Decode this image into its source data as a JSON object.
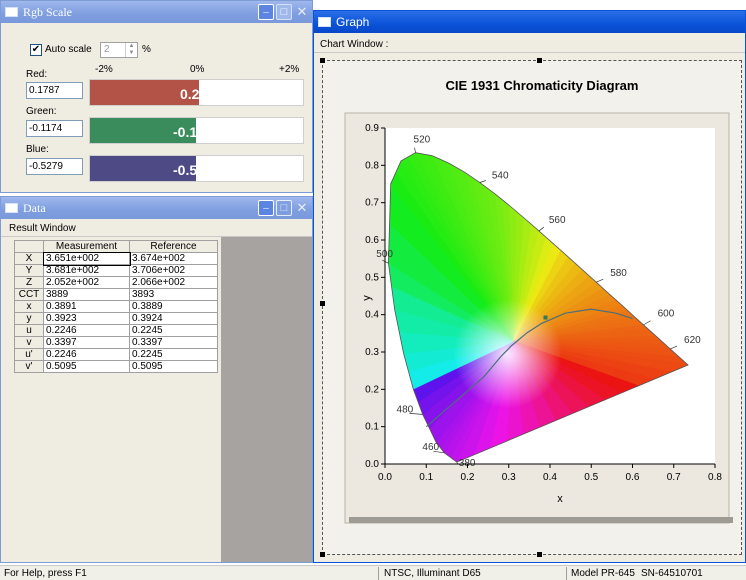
{
  "rgb_window": {
    "title": "Rgb Scale",
    "auto_scale_label": "Auto scale",
    "auto_scale_checked": true,
    "scale_value": "2",
    "scale_unit": "%",
    "axis": {
      "min": "-2%",
      "mid": "0%",
      "max": "+2%"
    },
    "channels": [
      {
        "label": "Red:",
        "value": "0.1787",
        "bar_text": "0.2%",
        "color": "#b35348",
        "percent": 0.2
      },
      {
        "label": "Green:",
        "value": "-0.1174",
        "bar_text": "-0.1%",
        "color": "#3a8c5c",
        "percent": -0.1
      },
      {
        "label": "Blue:",
        "value": "-0.5279",
        "bar_text": "-0.5%",
        "color": "#4d4a86",
        "percent": -0.5
      }
    ]
  },
  "data_window": {
    "title": "Data",
    "result_label": "Result Window",
    "columns": [
      "",
      "Measurement",
      "Reference"
    ],
    "rows": [
      [
        "X",
        "3.651e+002",
        "3.674e+002"
      ],
      [
        "Y",
        "3.681e+002",
        "3.706e+002"
      ],
      [
        "Z",
        "2.052e+002",
        "2.066e+002"
      ],
      [
        "CCT",
        "3889",
        "3893"
      ],
      [
        "x",
        "0.3891",
        "0.3889"
      ],
      [
        "y",
        "0.3923",
        "0.3924"
      ],
      [
        "u",
        "0.2246",
        "0.2245"
      ],
      [
        "v",
        "0.3397",
        "0.3397"
      ],
      [
        "u'",
        "0.2246",
        "0.2245"
      ],
      [
        "v'",
        "0.5095",
        "0.5095"
      ]
    ]
  },
  "graph_window": {
    "title": "Graph",
    "chart_window_label": "Chart Window :"
  },
  "chart_data": {
    "type": "scatter",
    "title": "CIE 1931 Chromaticity Diagram",
    "xlabel": "x",
    "ylabel": "y",
    "xlim": [
      0,
      0.8
    ],
    "ylim": [
      0,
      0.9
    ],
    "x_ticks": [
      "0.0",
      "0.1",
      "0.2",
      "0.3",
      "0.4",
      "0.5",
      "0.6",
      "0.7",
      "0.8"
    ],
    "y_ticks": [
      "0.0",
      "0.1",
      "0.2",
      "0.3",
      "0.4",
      "0.5",
      "0.6",
      "0.7",
      "0.8",
      "0.9"
    ],
    "wavelength_labels": [
      {
        "text": "380",
        "x": 0.174,
        "y": 0.005
      },
      {
        "text": "460",
        "x": 0.144,
        "y": 0.03
      },
      {
        "text": "480",
        "x": 0.091,
        "y": 0.133
      },
      {
        "text": "500",
        "x": 0.008,
        "y": 0.538
      },
      {
        "text": "520",
        "x": 0.074,
        "y": 0.834
      },
      {
        "text": "540",
        "x": 0.23,
        "y": 0.754
      },
      {
        "text": "560",
        "x": 0.373,
        "y": 0.624
      },
      {
        "text": "580",
        "x": 0.512,
        "y": 0.487
      },
      {
        "text": "600",
        "x": 0.627,
        "y": 0.373
      },
      {
        "text": "620",
        "x": 0.691,
        "y": 0.308
      }
    ],
    "spectral_locus": [
      [
        0.1741,
        0.005
      ],
      [
        0.144,
        0.0297
      ],
      [
        0.1241,
        0.0578
      ],
      [
        0.0913,
        0.1327
      ],
      [
        0.0687,
        0.2007
      ],
      [
        0.0454,
        0.295
      ],
      [
        0.0235,
        0.4127
      ],
      [
        0.0082,
        0.5384
      ],
      [
        0.0139,
        0.7502
      ],
      [
        0.0389,
        0.812
      ],
      [
        0.0743,
        0.8338
      ],
      [
        0.1142,
        0.8262
      ],
      [
        0.1547,
        0.8059
      ],
      [
        0.1929,
        0.7816
      ],
      [
        0.2296,
        0.7543
      ],
      [
        0.2658,
        0.7243
      ],
      [
        0.3016,
        0.6923
      ],
      [
        0.3373,
        0.6589
      ],
      [
        0.3731,
        0.6245
      ],
      [
        0.4087,
        0.5896
      ],
      [
        0.4441,
        0.5547
      ],
      [
        0.4788,
        0.5202
      ],
      [
        0.5125,
        0.4866
      ],
      [
        0.5448,
        0.4544
      ],
      [
        0.5752,
        0.4242
      ],
      [
        0.6029,
        0.3965
      ],
      [
        0.627,
        0.3725
      ],
      [
        0.6482,
        0.3514
      ],
      [
        0.6658,
        0.334
      ],
      [
        0.6915,
        0.3083
      ],
      [
        0.7347,
        0.2653
      ]
    ],
    "planckian_locus": [
      [
        0.1,
        0.1
      ],
      [
        0.24,
        0.234
      ],
      [
        0.281,
        0.288
      ],
      [
        0.306,
        0.316
      ],
      [
        0.345,
        0.352
      ],
      [
        0.38,
        0.377
      ],
      [
        0.437,
        0.404
      ],
      [
        0.5,
        0.415
      ],
      [
        0.56,
        0.404
      ],
      [
        0.6,
        0.39
      ]
    ],
    "measured_point": {
      "x": 0.3891,
      "y": 0.3923
    }
  },
  "statusbar": {
    "help": "For Help, press F1",
    "illuminant": "NTSC, Illuminant D65",
    "model": "Model PR-645",
    "serial": "SN-64510701"
  }
}
